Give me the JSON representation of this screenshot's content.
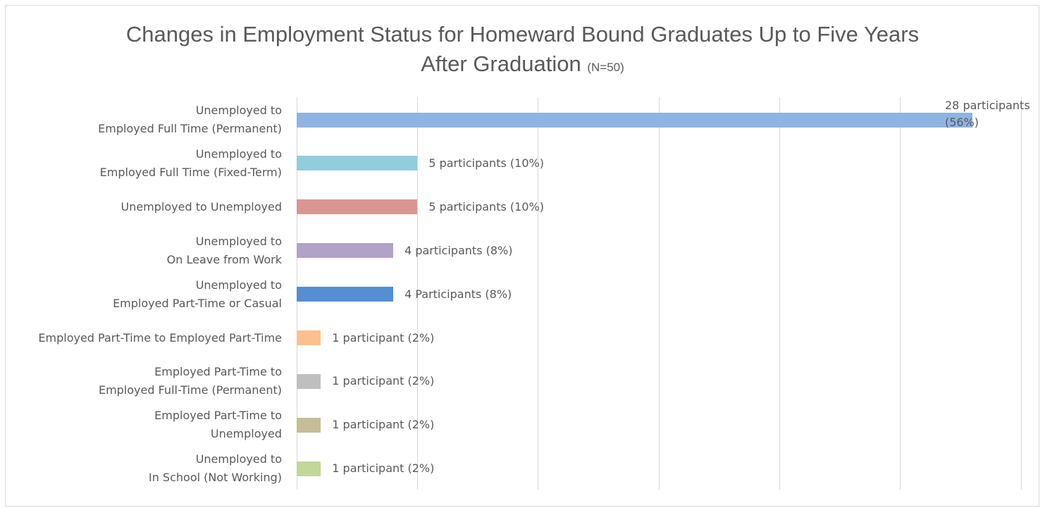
{
  "chart_data": {
    "type": "hbar",
    "title": "Changes in Employment Status for Homeward Bound Graduates Up to Five Years After Graduation",
    "subtitle": "(N=50)",
    "categories": [
      "Unemployed to\nEmployed Full Time (Permanent)",
      "Unemployed to\nEmployed Full Time (Fixed-Term)",
      "Unemployed to Unemployed",
      "Unemployed to\nOn Leave from Work",
      "Unemployed to\nEmployed Part-Time or Casual",
      "Employed Part-Time to Employed Part-Time",
      "Employed Part-Time to\nEmployed Full-Time (Permanent)",
      "Employed Part-Time to\nUnemployed",
      "Unemployed to\nIn School (Not Working)"
    ],
    "values": [
      28,
      5,
      5,
      4,
      4,
      1,
      1,
      1,
      1
    ],
    "value_labels": [
      "28 participants (56%)",
      "5 participants (10%)",
      "5 participants (10%)",
      "4 participants (8%)",
      "4 Participants (8%)",
      "1 participant (2%)",
      "1 participant (2%)",
      "1 participant (2%)",
      "1 participant (2%)"
    ],
    "colors": [
      "#8eb4e3",
      "#92cddc",
      "#d99694",
      "#b3a2c7",
      "#558ed5",
      "#fac090",
      "#bfbfbf",
      "#c4bd97",
      "#c3d69b"
    ],
    "xlim": [
      0,
      30
    ],
    "xticks": [
      0,
      5,
      10,
      15,
      20,
      25,
      30
    ],
    "grid": true
  }
}
